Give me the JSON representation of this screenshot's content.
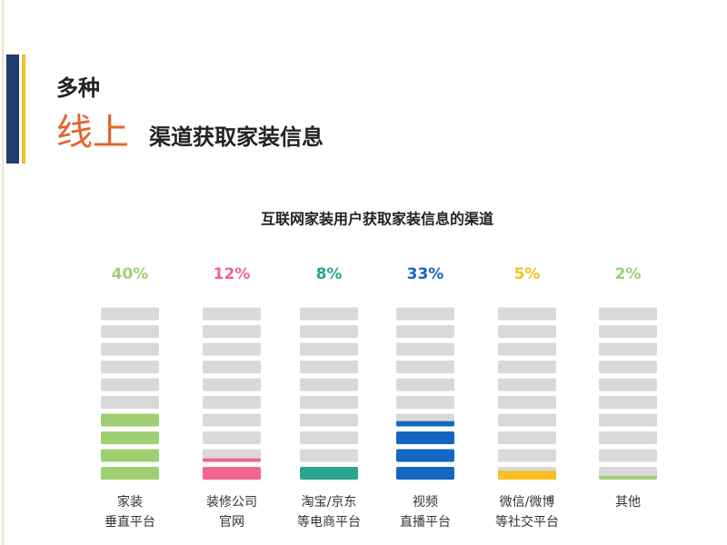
{
  "header": {
    "line1": "多种",
    "highlight": "线上",
    "rest": "渠道获取家装信息"
  },
  "chart_data": {
    "type": "bar",
    "title": "互联网家装用户获取家装信息的渠道",
    "categories": [
      [
        "家装",
        "垂直平台"
      ],
      [
        "装修公司",
        "官网"
      ],
      [
        "淘宝/京东",
        "等电商平台"
      ],
      [
        "视频",
        "直播平台"
      ],
      [
        "微信/微博",
        "等社交平台"
      ],
      [
        "其他"
      ]
    ],
    "values": [
      40,
      12,
      8,
      33,
      5,
      2
    ],
    "value_labels": [
      "40%",
      "12%",
      "8%",
      "33%",
      "5%",
      "2%"
    ],
    "colors": [
      "#9fcf73",
      "#f06690",
      "#2aa58d",
      "#1566c0",
      "#f8c020",
      "#9fcf73"
    ],
    "ylim": [
      0,
      100
    ]
  }
}
